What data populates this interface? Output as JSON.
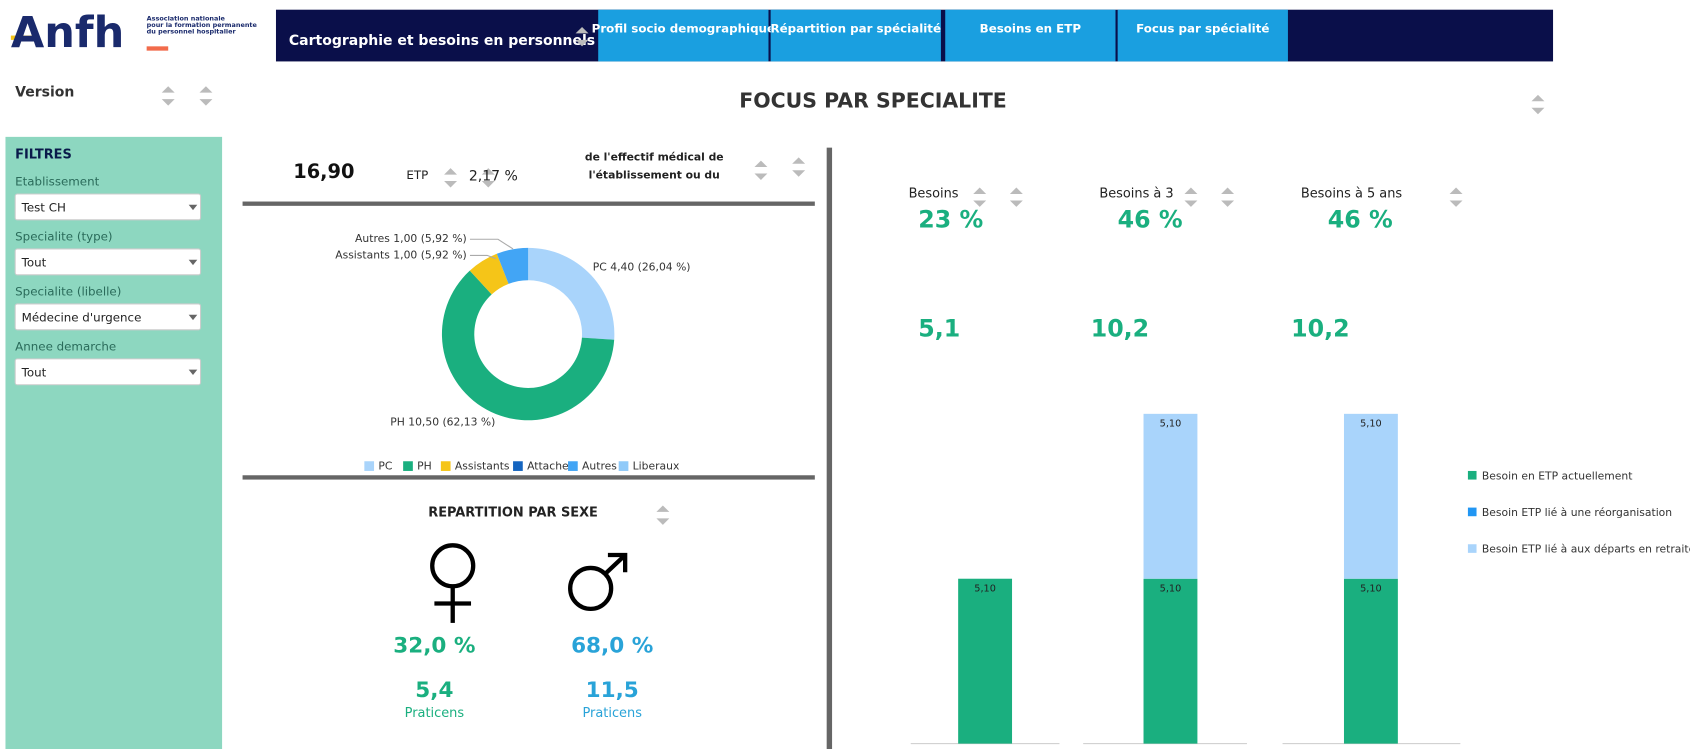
{
  "header": {
    "logo": "Anfh",
    "logo_sub": [
      "Association nationale",
      "pour la formation permanente",
      "du personnel hospitalier"
    ],
    "nav_title": "Cartographie et besoins en personnels",
    "tabs": [
      "Profil socio demographique",
      "Répartition par spécialité",
      "Besoins en ETP",
      "Focus par spécialité"
    ]
  },
  "version_label": "Version",
  "page_title": "FOCUS PAR SPECIALITE",
  "filters": {
    "title": "FILTRES",
    "items": [
      {
        "label": "Etablissement",
        "value": "Test CH"
      },
      {
        "label": "Specialite (type)",
        "value": "Tout"
      },
      {
        "label": "Specialite (libelle)",
        "value": "Médecine d'urgence"
      },
      {
        "label": "Annee demarche",
        "value": "Tout"
      }
    ]
  },
  "kpi": {
    "value": "16,90",
    "unit": "ETP",
    "pct": "2,17 %",
    "text": [
      "de l'effectif médical de",
      "l'établissement ou du"
    ]
  },
  "donut": {
    "type": "pie",
    "categories": [
      "PC",
      "PH",
      "Assistants",
      "Attaches",
      "Autres",
      "Liberaux"
    ],
    "values": [
      4.4,
      10.5,
      1.0,
      0,
      1.0,
      0
    ],
    "value_labels": [
      "PC 4,40 (26,04 %)",
      "PH 10,50 (62,13 %)",
      "Assistants 1,00 (5,92 %)",
      null,
      "Autres 1,00 (5,92 %)",
      null
    ],
    "colors": [
      "#a9d4fb",
      "#1aaf7f",
      "#f5c518",
      "#1565c0",
      "#42a5f5",
      "#90caf9"
    ]
  },
  "sex": {
    "title": "REPARTITION PAR SEXE",
    "female": {
      "pct": "32,0 %",
      "value": "5,4",
      "unit": "Praticens"
    },
    "male": {
      "pct": "68,0 %",
      "value": "11,5",
      "unit": "Praticens"
    }
  },
  "needs": [
    {
      "label": "Besoins",
      "pct": "23 %",
      "etp": "5,1"
    },
    {
      "label": "Besoins à 3",
      "pct": "46 %",
      "etp": "10,2"
    },
    {
      "label": "Besoins à 5 ans",
      "pct": "46 %",
      "etp": "10,2"
    }
  ],
  "bars": {
    "type": "bar",
    "ylim": [
      0,
      11
    ],
    "series": [
      {
        "name": "Besoin en ETP actuellement",
        "color": "#1aaf7f",
        "values": [
          5.1,
          5.1,
          5.1
        ],
        "value_labels": [
          "5,10",
          "5,10",
          "5,10"
        ]
      },
      {
        "name": "Besoin ETP lié à une réorganisation",
        "color": "#2196f3",
        "values": [
          0,
          0,
          0
        ],
        "value_labels": [
          null,
          null,
          null
        ]
      },
      {
        "name": "Besoin ETP lié à aux départs en retraite",
        "color": "#a9d4fb",
        "values": [
          0,
          5.1,
          5.1
        ],
        "value_labels": [
          null,
          "5,10",
          "5,10"
        ]
      }
    ]
  }
}
